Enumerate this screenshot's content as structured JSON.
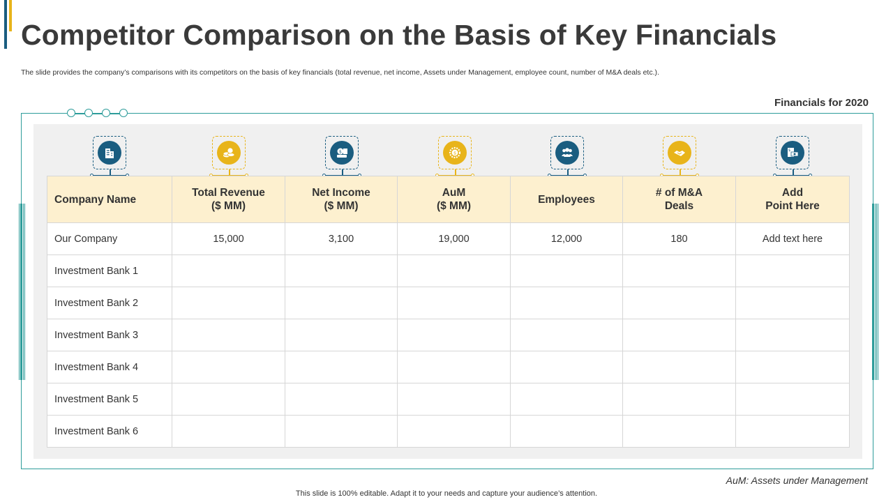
{
  "title": "Competitor Comparison on the Basis of Key Financials",
  "subtitle": "The slide provides the company’s comparisons with its competitors on the basis of key financials (total revenue, net income, Assets under Management, employee count, number of M&A  deals etc.).",
  "financials_label": "Financials for 2020",
  "colors": {
    "blue": "#1a5d80",
    "gold": "#e8b41a",
    "teal": "#2d9c9a",
    "header_bg": "#fdf0cf"
  },
  "icons": [
    "building-icon",
    "coins-icon",
    "money-hand-icon",
    "gear-dollar-icon",
    "people-icon",
    "handshake-icon",
    "cash-register-icon"
  ],
  "table": {
    "headers": [
      [
        "Company Name"
      ],
      [
        "Total Revenue",
        "($ MM)"
      ],
      [
        "Net Income",
        "($ MM)"
      ],
      [
        "AuM",
        "($ MM)"
      ],
      [
        "Employees"
      ],
      [
        "# of M&A",
        "Deals"
      ],
      [
        "Add",
        "Point Here"
      ]
    ],
    "rows": [
      [
        "Our Company",
        "15,000",
        "3,100",
        "19,000",
        "12,000",
        "180",
        "Add text here"
      ],
      [
        "Investment Bank 1",
        "",
        "",
        "",
        "",
        "",
        ""
      ],
      [
        "Investment Bank 2",
        "",
        "",
        "",
        "",
        "",
        ""
      ],
      [
        "Investment Bank 3",
        "",
        "",
        "",
        "",
        "",
        ""
      ],
      [
        "Investment Bank 4",
        "",
        "",
        "",
        "",
        "",
        ""
      ],
      [
        "Investment Bank 5",
        "",
        "",
        "",
        "",
        "",
        ""
      ],
      [
        "Investment Bank 6",
        "",
        "",
        "",
        "",
        "",
        ""
      ]
    ]
  },
  "footnote": "AuM: Assets under Management",
  "footer": "This slide is 100% editable. Adapt it to your needs and capture your audience’s attention."
}
